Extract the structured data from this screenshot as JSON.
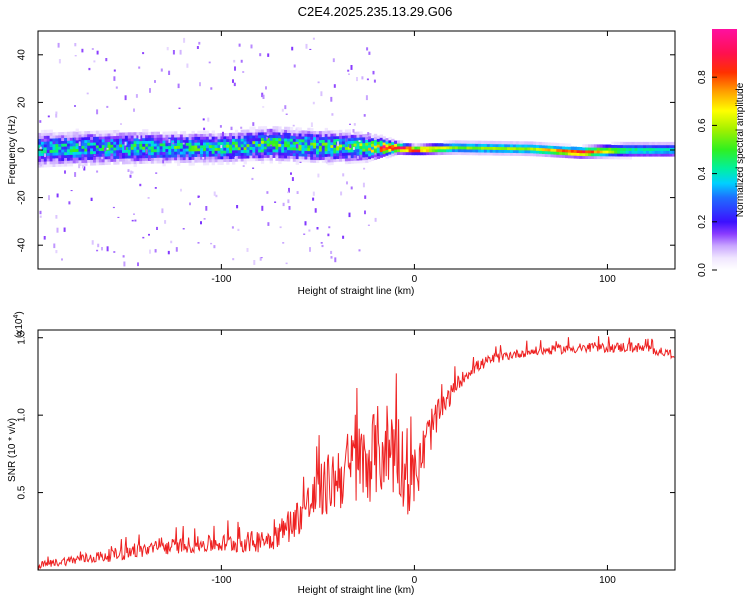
{
  "title": "C2E4.2025.235.13.29.G06",
  "colors": {
    "snr_line": "#ee2222",
    "axis": "#000000"
  },
  "chart_data": [
    {
      "type": "heatmap",
      "xlabel": "Height of straight line (km)",
      "ylabel": "Frequency (Hz)",
      "xlim": [
        -195,
        135
      ],
      "ylim": [
        -50,
        50
      ],
      "xticks": [
        -100,
        0,
        100
      ],
      "xtick_labels": [
        "-100",
        "0",
        "100"
      ],
      "yticks": [
        -40,
        -20,
        0,
        20,
        40
      ],
      "ytick_labels": [
        "-40",
        "-20",
        "0",
        "20",
        "40"
      ],
      "grid": false,
      "description_note": "Energy concentrated near 0 Hz; broad noisy band for heights below about -15 km, narrow coherent band above",
      "band": [
        {
          "x": -195,
          "center": 0.0,
          "halfwidth": 6.0,
          "peak": 0.35
        },
        {
          "x": -150,
          "center": 0.5,
          "halfwidth": 5.5,
          "peak": 0.38
        },
        {
          "x": -100,
          "center": 0.5,
          "halfwidth": 5.0,
          "peak": 0.4
        },
        {
          "x": -75,
          "center": 2.0,
          "halfwidth": 5.5,
          "peak": 0.45
        },
        {
          "x": -50,
          "center": 1.0,
          "halfwidth": 5.5,
          "peak": 0.42
        },
        {
          "x": -25,
          "center": 0.5,
          "halfwidth": 4.5,
          "peak": 0.5
        },
        {
          "x": -10,
          "center": 0.5,
          "halfwidth": 2.0,
          "peak": 0.95
        },
        {
          "x": 0,
          "center": -0.5,
          "halfwidth": 1.5,
          "peak": 0.9
        },
        {
          "x": 20,
          "center": 0.5,
          "halfwidth": 2.0,
          "peak": 0.55
        },
        {
          "x": 60,
          "center": 0.0,
          "halfwidth": 2.0,
          "peak": 0.6
        },
        {
          "x": 85,
          "center": -1.5,
          "halfwidth": 1.8,
          "peak": 0.92
        },
        {
          "x": 110,
          "center": -0.5,
          "halfwidth": 2.5,
          "peak": 0.45
        },
        {
          "x": 135,
          "center": -0.5,
          "halfwidth": 2.5,
          "peak": 0.4
        }
      ],
      "colorbar": {
        "label": "Normalized spectral amplitude",
        "range": [
          0,
          1
        ],
        "ticks": [
          0.0,
          0.2,
          0.4,
          0.6,
          0.8
        ],
        "tick_labels": [
          "0.0",
          "0.2",
          "0.4",
          "0.6",
          "0.8"
        ]
      }
    },
    {
      "type": "line",
      "xlabel": "Height of straight line (km)",
      "ylabel": "SNR (10 * v/v)",
      "multiplier_label": "(x10",
      "multiplier_exp": "4",
      "multiplier_close": ")",
      "xlim": [
        -195,
        135
      ],
      "ylim": [
        0,
        15500
      ],
      "xticks": [
        -100,
        0,
        100
      ],
      "xtick_labels": [
        "-100",
        "0",
        "100"
      ],
      "yticks": [
        5000,
        10000,
        15000
      ],
      "ytick_labels": [
        "0.5",
        "1.0",
        "1.5"
      ],
      "grid": false,
      "series": [
        {
          "name": "SNR",
          "x": [
            -195,
            -180,
            -160,
            -140,
            -120,
            -100,
            -85,
            -75,
            -65,
            -55,
            -45,
            -35,
            -25,
            -18,
            -12,
            -8,
            -3,
            2,
            8,
            15,
            22,
            30,
            40,
            50,
            60,
            70,
            80,
            90,
            100,
            110,
            120,
            135
          ],
          "y": [
            300,
            600,
            900,
            1300,
            1600,
            1700,
            1800,
            2000,
            2800,
            4200,
            5500,
            6500,
            7000,
            7800,
            8000,
            7500,
            5500,
            6500,
            9000,
            10500,
            12000,
            13000,
            13600,
            13900,
            14100,
            14200,
            14300,
            14300,
            14350,
            14400,
            14300,
            13900
          ],
          "noise": [
            200,
            300,
            400,
            500,
            500,
            600,
            700,
            800,
            1000,
            1500,
            2000,
            2500,
            2800,
            3000,
            3200,
            3000,
            2000,
            1800,
            1500,
            800,
            500,
            400,
            350,
            300,
            300,
            300,
            300,
            300,
            300,
            350,
            300,
            250
          ]
        }
      ]
    }
  ]
}
